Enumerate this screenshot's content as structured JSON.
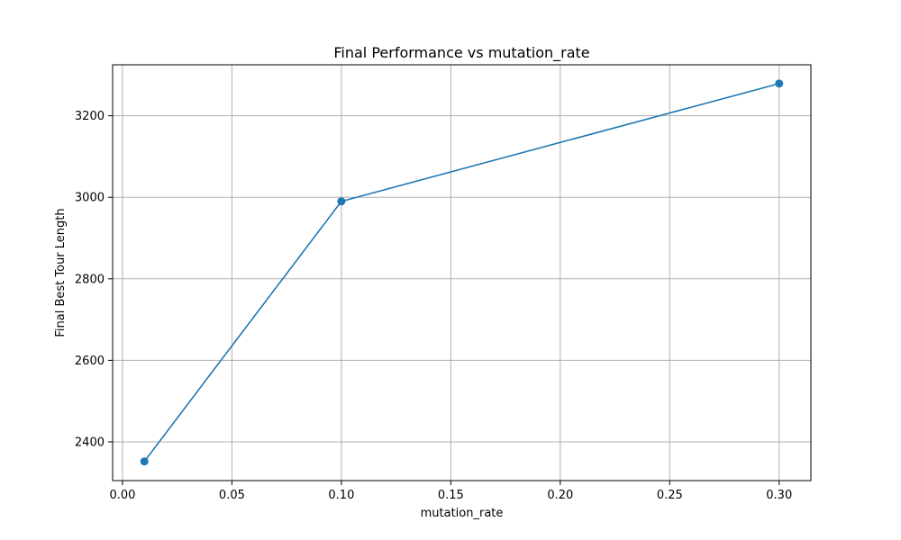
{
  "chart_data": {
    "type": "line",
    "title": "Final Performance vs mutation_rate",
    "xlabel": "mutation_rate",
    "ylabel": "Final Best Tour Length",
    "x": [
      0.01,
      0.1,
      0.3
    ],
    "series": [
      {
        "values": [
          2352,
          2990,
          3279
        ],
        "color": "#1f77b4",
        "marker": "circle"
      }
    ],
    "xlim": [
      -0.0045,
      0.3145
    ],
    "ylim": [
      2305,
      3325
    ],
    "xticks": [
      0.0,
      0.05,
      0.1,
      0.15,
      0.2,
      0.25,
      0.3
    ],
    "xtick_labels": [
      "0.00",
      "0.05",
      "0.10",
      "0.15",
      "0.20",
      "0.25",
      "0.30"
    ],
    "yticks": [
      2400,
      2600,
      2800,
      3000,
      3200
    ],
    "ytick_labels": [
      "2400",
      "2600",
      "2800",
      "3000",
      "3200"
    ],
    "grid": true,
    "legend": "none"
  }
}
